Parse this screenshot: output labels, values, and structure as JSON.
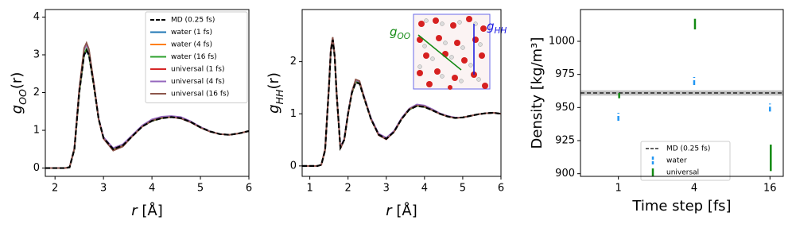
{
  "chart_data": [
    {
      "type": "line",
      "ylabel": [
        "g",
        "OO",
        "(r)"
      ],
      "xlabel": [
        "r",
        " [Å]"
      ],
      "xlim": [
        1.8,
        6
      ],
      "ylim": [
        -0.22,
        4.2
      ],
      "xticks": [
        2,
        3,
        4,
        5,
        6
      ],
      "yticks": [
        0,
        1,
        2,
        3,
        4
      ],
      "legend": "upper right",
      "x": [
        1.8,
        2.0,
        2.2,
        2.3,
        2.4,
        2.5,
        2.6,
        2.65,
        2.7,
        2.8,
        2.9,
        3.0,
        3.2,
        3.4,
        3.6,
        3.8,
        4.0,
        4.2,
        4.4,
        4.6,
        4.8,
        5.0,
        5.2,
        5.4,
        5.6,
        5.8,
        6.0
      ],
      "series": [
        {
          "name": "MD (0.25 fs)",
          "color": "#000000",
          "dashed": true,
          "values": [
            0,
            0,
            0,
            0.02,
            0.5,
            2.0,
            3.0,
            3.12,
            3.0,
            2.2,
            1.3,
            0.8,
            0.5,
            0.6,
            0.85,
            1.1,
            1.25,
            1.32,
            1.35,
            1.32,
            1.22,
            1.08,
            0.97,
            0.9,
            0.88,
            0.92,
            0.98
          ]
        },
        {
          "name": "water (1 fs)",
          "color": "#1f77b4",
          "values": [
            0,
            0,
            0,
            0.02,
            0.5,
            2.0,
            2.98,
            3.1,
            2.98,
            2.2,
            1.3,
            0.8,
            0.5,
            0.6,
            0.85,
            1.1,
            1.25,
            1.32,
            1.35,
            1.32,
            1.22,
            1.08,
            0.97,
            0.9,
            0.88,
            0.92,
            0.98
          ]
        },
        {
          "name": "water (4 fs)",
          "color": "#ff7f0e",
          "values": [
            0,
            0,
            0,
            0.02,
            0.5,
            2.0,
            3.0,
            3.14,
            3.0,
            2.2,
            1.3,
            0.8,
            0.5,
            0.6,
            0.85,
            1.1,
            1.25,
            1.32,
            1.35,
            1.32,
            1.22,
            1.08,
            0.97,
            0.9,
            0.88,
            0.92,
            0.98
          ]
        },
        {
          "name": "water (16 fs)",
          "color": "#2ca02c",
          "values": [
            0,
            0,
            0,
            0.02,
            0.5,
            2.0,
            3.02,
            3.16,
            3.02,
            2.2,
            1.3,
            0.8,
            0.5,
            0.6,
            0.85,
            1.1,
            1.25,
            1.32,
            1.35,
            1.32,
            1.22,
            1.08,
            0.97,
            0.9,
            0.88,
            0.92,
            0.98
          ]
        },
        {
          "name": "universal (1 fs)",
          "color": "#d62728",
          "values": [
            0,
            0,
            0,
            0.02,
            0.52,
            2.08,
            3.14,
            3.28,
            3.12,
            2.25,
            1.3,
            0.78,
            0.47,
            0.58,
            0.85,
            1.1,
            1.26,
            1.33,
            1.36,
            1.32,
            1.22,
            1.08,
            0.97,
            0.9,
            0.88,
            0.92,
            0.98
          ]
        },
        {
          "name": "universal (4 fs)",
          "color": "#9467bd",
          "values": [
            0,
            0,
            0,
            0.02,
            0.52,
            2.08,
            3.13,
            3.27,
            3.11,
            2.25,
            1.32,
            0.82,
            0.53,
            0.63,
            0.88,
            1.13,
            1.29,
            1.36,
            1.38,
            1.35,
            1.24,
            1.09,
            0.97,
            0.9,
            0.88,
            0.92,
            0.98
          ]
        },
        {
          "name": "universal (16 fs)",
          "color": "#8c564b",
          "values": [
            0,
            0,
            0,
            0.02,
            0.53,
            2.1,
            3.18,
            3.32,
            3.15,
            2.26,
            1.3,
            0.78,
            0.46,
            0.57,
            0.85,
            1.1,
            1.26,
            1.33,
            1.35,
            1.31,
            1.21,
            1.07,
            0.96,
            0.9,
            0.88,
            0.92,
            0.98
          ]
        }
      ]
    },
    {
      "type": "line",
      "ylabel": [
        "g",
        "HH",
        "(r)"
      ],
      "xlabel": [
        "r",
        " [Å]"
      ],
      "xlim": [
        0.8,
        6
      ],
      "ylim": [
        -0.2,
        3.0
      ],
      "xticks": [
        1,
        2,
        3,
        4,
        5,
        6
      ],
      "yticks": [
        0,
        1,
        2
      ],
      "annotations": [
        {
          "text": "g",
          "sub": "OO",
          "color": "#138a13"
        },
        {
          "text": "g",
          "sub": "HH",
          "color": "#1515e0"
        }
      ],
      "x": [
        0.8,
        1.0,
        1.2,
        1.3,
        1.4,
        1.5,
        1.55,
        1.6,
        1.65,
        1.7,
        1.8,
        1.9,
        2.0,
        2.1,
        2.2,
        2.3,
        2.4,
        2.6,
        2.8,
        3.0,
        3.2,
        3.4,
        3.6,
        3.8,
        4.0,
        4.2,
        4.4,
        4.6,
        4.8,
        5.0,
        5.2,
        5.4,
        5.6,
        5.8,
        6.0
      ],
      "series": [
        {
          "name": "MD (0.25 fs)",
          "color": "#000000",
          "dashed": true,
          "values": [
            0,
            0,
            0,
            0.02,
            0.3,
            1.5,
            2.2,
            2.42,
            2.1,
            1.4,
            0.35,
            0.5,
            1.0,
            1.4,
            1.6,
            1.58,
            1.35,
            0.9,
            0.6,
            0.52,
            0.65,
            0.9,
            1.08,
            1.15,
            1.13,
            1.07,
            1.0,
            0.95,
            0.92,
            0.93,
            0.96,
            0.99,
            1.01,
            1.02,
            1.0
          ]
        },
        {
          "name": "water (1 fs)",
          "color": "#1f77b4",
          "values": [
            0,
            0,
            0,
            0.02,
            0.3,
            1.5,
            2.2,
            2.41,
            2.1,
            1.4,
            0.35,
            0.5,
            1.0,
            1.4,
            1.6,
            1.58,
            1.35,
            0.9,
            0.6,
            0.52,
            0.65,
            0.9,
            1.08,
            1.15,
            1.13,
            1.07,
            1.0,
            0.95,
            0.92,
            0.93,
            0.96,
            0.99,
            1.01,
            1.02,
            1.0
          ]
        },
        {
          "name": "water (4 fs)",
          "color": "#ff7f0e",
          "values": [
            0,
            0,
            0,
            0.02,
            0.3,
            1.5,
            2.21,
            2.43,
            2.1,
            1.4,
            0.35,
            0.5,
            1.0,
            1.4,
            1.61,
            1.59,
            1.35,
            0.9,
            0.6,
            0.52,
            0.65,
            0.9,
            1.08,
            1.15,
            1.13,
            1.07,
            1.0,
            0.95,
            0.92,
            0.93,
            0.96,
            0.99,
            1.01,
            1.02,
            1.0
          ]
        },
        {
          "name": "water (16 fs)",
          "color": "#2ca02c",
          "values": [
            0,
            0,
            0,
            0.02,
            0.31,
            1.52,
            2.22,
            2.44,
            2.11,
            1.4,
            0.35,
            0.5,
            1.0,
            1.4,
            1.62,
            1.6,
            1.36,
            0.9,
            0.6,
            0.52,
            0.65,
            0.9,
            1.08,
            1.15,
            1.13,
            1.07,
            1.0,
            0.95,
            0.92,
            0.93,
            0.96,
            0.99,
            1.01,
            1.02,
            1.0
          ]
        },
        {
          "name": "universal (1 fs)",
          "color": "#d62728",
          "values": [
            0,
            0,
            0,
            0.02,
            0.32,
            1.53,
            2.24,
            2.46,
            2.12,
            1.4,
            0.34,
            0.5,
            1.0,
            1.42,
            1.65,
            1.62,
            1.37,
            0.9,
            0.59,
            0.51,
            0.65,
            0.9,
            1.09,
            1.16,
            1.14,
            1.07,
            1.0,
            0.95,
            0.92,
            0.93,
            0.96,
            0.99,
            1.01,
            1.02,
            1.0
          ]
        },
        {
          "name": "universal (4 fs)",
          "color": "#9467bd",
          "values": [
            0,
            0,
            0,
            0.02,
            0.32,
            1.53,
            2.24,
            2.46,
            2.12,
            1.41,
            0.36,
            0.52,
            1.02,
            1.43,
            1.64,
            1.62,
            1.38,
            0.92,
            0.62,
            0.54,
            0.67,
            0.92,
            1.1,
            1.18,
            1.16,
            1.09,
            1.01,
            0.96,
            0.93,
            0.93,
            0.96,
            0.99,
            1.01,
            1.02,
            1.0
          ]
        },
        {
          "name": "universal (16 fs)",
          "color": "#8c564b",
          "values": [
            0,
            0,
            0,
            0.02,
            0.33,
            1.55,
            2.26,
            2.47,
            2.13,
            1.4,
            0.33,
            0.5,
            1.0,
            1.42,
            1.66,
            1.63,
            1.37,
            0.9,
            0.59,
            0.51,
            0.65,
            0.9,
            1.09,
            1.16,
            1.14,
            1.07,
            1.0,
            0.95,
            0.92,
            0.93,
            0.96,
            0.99,
            1.01,
            1.02,
            1.0
          ]
        }
      ]
    },
    {
      "type": "errorbar",
      "ylabel": "Density [kg/m³]",
      "xlabel": "Time step [fs]",
      "log_x": true,
      "xlim": [
        0.5,
        20.4
      ],
      "ylim": [
        898,
        1024
      ],
      "xticks": [
        1,
        4,
        16
      ],
      "yticks": [
        900,
        925,
        950,
        975,
        1000
      ],
      "legend": "lower center",
      "x": [
        1,
        4,
        16
      ],
      "reference": {
        "name": "MD (0.25 fs)",
        "value": 961,
        "band": 2,
        "color": "#000000"
      },
      "series": [
        {
          "name": "water",
          "color": "#2196f3",
          "dashed": true,
          "values": [
            943,
            970,
            950
          ],
          "errors": [
            3,
            3,
            3
          ]
        },
        {
          "name": "universal",
          "color": "#138a13",
          "values": [
            959,
            1013,
            912
          ],
          "errors": [
            2,
            4,
            10
          ]
        }
      ]
    }
  ]
}
